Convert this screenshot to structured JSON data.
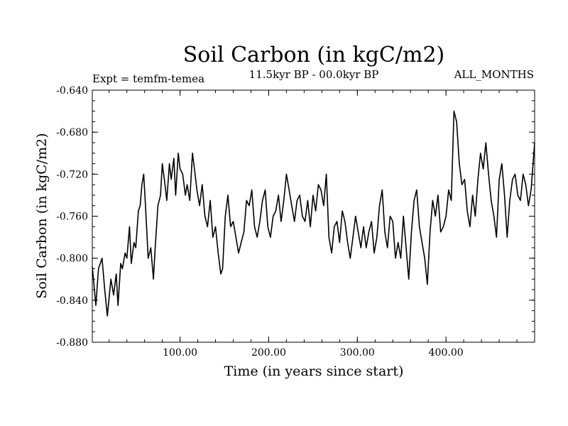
{
  "chart_data": {
    "type": "line",
    "title": "Soil Carbon (in kgC/m2)",
    "subtitle_left": "Expt = temfm-temea",
    "subtitle_center": "11.5kyr BP - 00.0kyr BP",
    "subtitle_right": "ALL_MONTHS",
    "xlabel": "Time (in years since start)",
    "ylabel": "Soil Carbon (in kgC/m2)",
    "xlim": [
      1,
      500
    ],
    "ylim": [
      -0.88,
      -0.64
    ],
    "x_ticks": [
      100,
      200,
      300,
      400
    ],
    "x_tick_labels": [
      "100.00",
      "200.00",
      "300.00",
      "400.00"
    ],
    "y_ticks": [
      -0.64,
      -0.68,
      -0.72,
      -0.76,
      -0.8,
      -0.84,
      -0.88
    ],
    "y_tick_labels": [
      "-0.640",
      "-0.680",
      "-0.720",
      "-0.760",
      "-0.800",
      "-0.840",
      "-0.880"
    ],
    "line_color": "#000000",
    "series": [
      {
        "name": "Soil Carbon",
        "x": [
          1,
          5,
          8,
          12,
          15,
          18,
          22,
          25,
          28,
          30,
          33,
          35,
          38,
          40,
          43,
          45,
          48,
          50,
          53,
          55,
          57,
          59,
          61,
          64,
          67,
          70,
          72,
          75,
          78,
          80,
          83,
          85,
          88,
          90,
          93,
          95,
          98,
          100,
          103,
          106,
          108,
          111,
          114,
          117,
          119,
          122,
          125,
          128,
          131,
          134,
          137,
          140,
          143,
          146,
          148,
          151,
          154,
          157,
          160,
          163,
          166,
          169,
          172,
          175,
          178,
          181,
          184,
          187,
          190,
          193,
          196,
          199,
          202,
          205,
          208,
          211,
          214,
          217,
          220,
          223,
          226,
          229,
          232,
          235,
          238,
          241,
          244,
          247,
          250,
          253,
          256,
          259,
          262,
          265,
          268,
          271,
          274,
          277,
          280,
          283,
          286,
          289,
          292,
          295,
          298,
          301,
          304,
          307,
          310,
          313,
          316,
          319,
          322,
          325,
          328,
          331,
          334,
          337,
          340,
          343,
          346,
          349,
          352,
          355,
          358,
          361,
          364,
          367,
          370,
          373,
          376,
          379,
          382,
          385,
          388,
          391,
          394,
          397,
          400,
          403,
          406,
          409,
          412,
          415,
          418,
          421,
          424,
          427,
          430,
          433,
          436,
          439,
          442,
          445,
          448,
          451,
          454,
          457,
          460,
          463,
          466,
          469,
          472,
          475,
          478,
          481,
          484,
          487,
          490,
          493,
          496,
          500
        ],
        "values": [
          -0.808,
          -0.845,
          -0.81,
          -0.8,
          -0.83,
          -0.855,
          -0.82,
          -0.835,
          -0.815,
          -0.845,
          -0.805,
          -0.81,
          -0.795,
          -0.8,
          -0.77,
          -0.805,
          -0.785,
          -0.79,
          -0.755,
          -0.75,
          -0.73,
          -0.72,
          -0.75,
          -0.8,
          -0.79,
          -0.82,
          -0.79,
          -0.75,
          -0.74,
          -0.71,
          -0.73,
          -0.745,
          -0.71,
          -0.725,
          -0.705,
          -0.74,
          -0.7,
          -0.715,
          -0.72,
          -0.74,
          -0.73,
          -0.745,
          -0.7,
          -0.72,
          -0.735,
          -0.75,
          -0.73,
          -0.76,
          -0.77,
          -0.745,
          -0.78,
          -0.77,
          -0.795,
          -0.815,
          -0.81,
          -0.76,
          -0.74,
          -0.77,
          -0.765,
          -0.78,
          -0.795,
          -0.785,
          -0.775,
          -0.745,
          -0.75,
          -0.735,
          -0.77,
          -0.78,
          -0.765,
          -0.745,
          -0.735,
          -0.77,
          -0.78,
          -0.76,
          -0.755,
          -0.74,
          -0.765,
          -0.745,
          -0.72,
          -0.735,
          -0.75,
          -0.765,
          -0.745,
          -0.74,
          -0.76,
          -0.765,
          -0.745,
          -0.77,
          -0.74,
          -0.755,
          -0.73,
          -0.735,
          -0.75,
          -0.72,
          -0.78,
          -0.795,
          -0.77,
          -0.765,
          -0.785,
          -0.755,
          -0.765,
          -0.785,
          -0.8,
          -0.78,
          -0.76,
          -0.775,
          -0.79,
          -0.77,
          -0.79,
          -0.775,
          -0.765,
          -0.795,
          -0.78,
          -0.75,
          -0.735,
          -0.775,
          -0.79,
          -0.76,
          -0.765,
          -0.8,
          -0.785,
          -0.8,
          -0.76,
          -0.79,
          -0.82,
          -0.775,
          -0.745,
          -0.735,
          -0.77,
          -0.785,
          -0.8,
          -0.825,
          -0.775,
          -0.745,
          -0.76,
          -0.74,
          -0.775,
          -0.77,
          -0.76,
          -0.735,
          -0.745,
          -0.66,
          -0.67,
          -0.71,
          -0.73,
          -0.725,
          -0.755,
          -0.77,
          -0.74,
          -0.76,
          -0.725,
          -0.7,
          -0.715,
          -0.69,
          -0.72,
          -0.745,
          -0.76,
          -0.78,
          -0.725,
          -0.71,
          -0.74,
          -0.78,
          -0.745,
          -0.725,
          -0.72,
          -0.74,
          -0.745,
          -0.72,
          -0.73,
          -0.75,
          -0.735,
          -0.69
        ]
      }
    ]
  }
}
